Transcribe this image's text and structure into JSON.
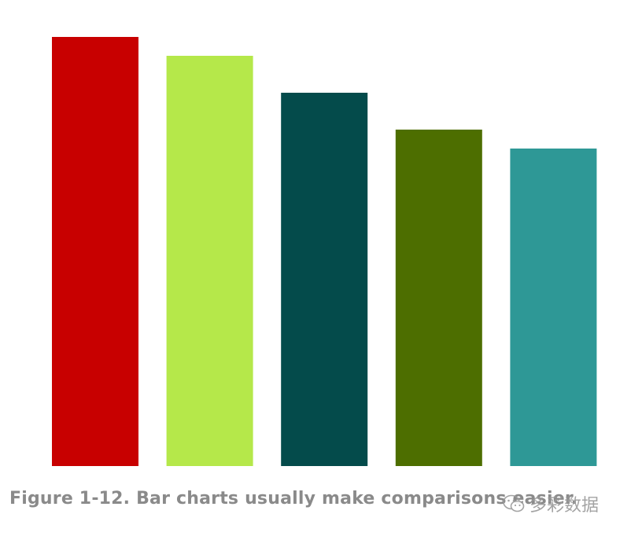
{
  "caption": "Figure 1-12. Bar charts usually make comparisons easier.",
  "watermark": {
    "icon": "wechat-logo-icon",
    "text": "多彩数据"
  },
  "chart_data": {
    "type": "bar",
    "categories": [
      "",
      "",
      "",
      "",
      ""
    ],
    "values": [
      100,
      95.6,
      87,
      78.4,
      74
    ],
    "colors": [
      "#c80000",
      "#b5e84a",
      "#044b4b",
      "#4d6e00",
      "#2e9896"
    ],
    "title": "",
    "xlabel": "",
    "ylabel": "",
    "ylim": [
      0,
      100
    ],
    "grid": false,
    "axes_visible": false,
    "legend": "none"
  }
}
